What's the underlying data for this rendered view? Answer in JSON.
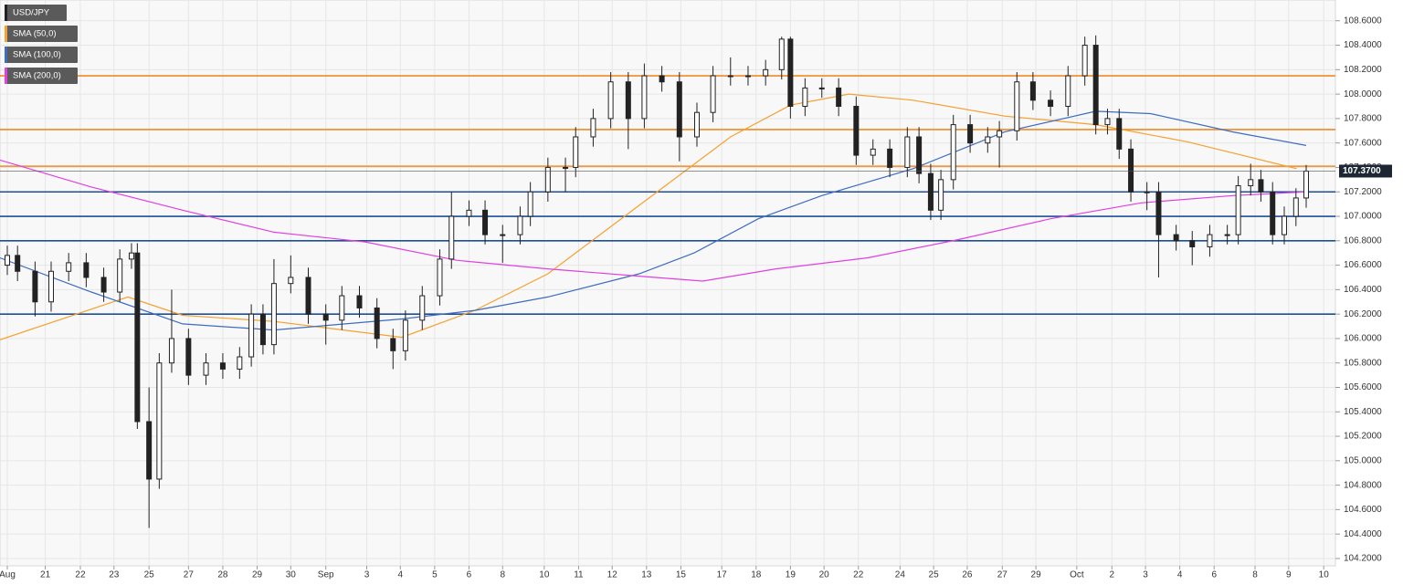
{
  "chart_data": {
    "type": "candlestick",
    "xlim": [
      0,
      91.4
    ],
    "ylim": [
      104.14,
      108.77
    ],
    "grid": true,
    "legend": "top-left",
    "yticks": [
      {
        "value": 104.2,
        "label": "104.2000"
      },
      {
        "value": 104.4,
        "label": "104.4000"
      },
      {
        "value": 104.6,
        "label": "104.6000"
      },
      {
        "value": 104.8,
        "label": "104.8000"
      },
      {
        "value": 105.0,
        "label": "105.0000"
      },
      {
        "value": 105.2,
        "label": "105.2000"
      },
      {
        "value": 105.4,
        "label": "105.4000"
      },
      {
        "value": 105.6,
        "label": "105.6000"
      },
      {
        "value": 105.8,
        "label": "105.8000"
      },
      {
        "value": 106.0,
        "label": "106.0000"
      },
      {
        "value": 106.2,
        "label": "106.2000"
      },
      {
        "value": 106.4,
        "label": "106.4000"
      },
      {
        "value": 106.6,
        "label": "106.6000"
      },
      {
        "value": 106.8,
        "label": "106.8000"
      },
      {
        "value": 107.0,
        "label": "107.0000"
      },
      {
        "value": 107.2,
        "label": "107.2000"
      },
      {
        "value": 107.4,
        "label": "107.4000"
      },
      {
        "value": 107.6,
        "label": "107.6000"
      },
      {
        "value": 107.8,
        "label": "107.8000"
      },
      {
        "value": 108.0,
        "label": "108.0000"
      },
      {
        "value": 108.2,
        "label": "108.2000"
      },
      {
        "value": 108.4,
        "label": "108.4000"
      },
      {
        "value": 108.6,
        "label": "108.6000"
      }
    ],
    "xticks": [
      {
        "value": 0.5,
        "label": "Aug"
      },
      {
        "value": 3.1,
        "label": "21"
      },
      {
        "value": 5.5,
        "label": "22"
      },
      {
        "value": 7.8,
        "label": "23"
      },
      {
        "value": 10.2,
        "label": "25"
      },
      {
        "value": 12.9,
        "label": "27"
      },
      {
        "value": 15.25,
        "label": "28"
      },
      {
        "value": 17.6,
        "label": "29"
      },
      {
        "value": 19.9,
        "label": "30"
      },
      {
        "value": 22.3,
        "label": "Sep"
      },
      {
        "value": 25.1,
        "label": "3"
      },
      {
        "value": 27.4,
        "label": "4"
      },
      {
        "value": 29.75,
        "label": "5"
      },
      {
        "value": 32.1,
        "label": "6"
      },
      {
        "value": 34.4,
        "label": "8"
      },
      {
        "value": 37.25,
        "label": "10"
      },
      {
        "value": 39.6,
        "label": "11"
      },
      {
        "value": 41.9,
        "label": "12"
      },
      {
        "value": 44.25,
        "label": "13"
      },
      {
        "value": 46.6,
        "label": "15"
      },
      {
        "value": 49.4,
        "label": "17"
      },
      {
        "value": 51.75,
        "label": "18"
      },
      {
        "value": 54.1,
        "label": "19"
      },
      {
        "value": 56.4,
        "label": "20"
      },
      {
        "value": 58.75,
        "label": "22"
      },
      {
        "value": 61.6,
        "label": "24"
      },
      {
        "value": 63.9,
        "label": "25"
      },
      {
        "value": 66.2,
        "label": "26"
      },
      {
        "value": 68.6,
        "label": "27"
      },
      {
        "value": 70.9,
        "label": "29"
      },
      {
        "value": 73.7,
        "label": "Oct"
      },
      {
        "value": 76.1,
        "label": "2"
      },
      {
        "value": 78.4,
        "label": "3"
      },
      {
        "value": 80.75,
        "label": "4"
      },
      {
        "value": 83.1,
        "label": "6"
      },
      {
        "value": 85.9,
        "label": "8"
      },
      {
        "value": 88.2,
        "label": "9"
      },
      {
        "value": 90.6,
        "label": "10"
      }
    ],
    "candles": {
      "name": "USD/JPY",
      "color": "#222222",
      "x": [
        0.5,
        1.2,
        2.4,
        3.5,
        4.7,
        5.9,
        7.1,
        8.2,
        9.0,
        9.4,
        10.2,
        10.9,
        11.75,
        12.9,
        14.1,
        15.25,
        16.4,
        17.2,
        18,
        18.75,
        19.9,
        21.1,
        22.3,
        23.4,
        24.6,
        25.8,
        26.9,
        27.75,
        28.9,
        30.1,
        30.9,
        32.1,
        33.2,
        34.4,
        35.6,
        36.3,
        37.5,
        38.7,
        39.4,
        40.6,
        41.8,
        43,
        44.1,
        45.3,
        46.5,
        47.7,
        48.8,
        50,
        51.2,
        52.4,
        53.5,
        54.1,
        55.1,
        56.25,
        57.4,
        58.6,
        59.75,
        60.9,
        62.1,
        62.9,
        63.7,
        64.4,
        65.25,
        66.4,
        67.6,
        68.4,
        69.6,
        70.7,
        71.9,
        73.1,
        74.25,
        75,
        75.8,
        76.6,
        77.4,
        78.5,
        79.3,
        80.5,
        81.6,
        82.8,
        84,
        84.75,
        85.6,
        86.3,
        87.1,
        87.9,
        88.7,
        89.4
      ],
      "open": [
        106.6,
        106.68,
        106.55,
        106.3,
        106.55,
        106.62,
        106.5,
        106.38,
        106.65,
        106.7,
        105.32,
        104.85,
        105.8,
        106.0,
        105.7,
        105.8,
        105.75,
        105.85,
        106.2,
        105.95,
        106.45,
        106.5,
        106.2,
        106.15,
        106.35,
        106.25,
        106.0,
        105.9,
        106.15,
        106.35,
        106.65,
        107.0,
        107.05,
        106.85,
        106.85,
        107.0,
        107.2,
        107.4,
        107.4,
        107.65,
        107.8,
        108.1,
        107.8,
        108.15,
        108.1,
        107.65,
        107.85,
        108.15,
        108.15,
        108.15,
        108.2,
        108.45,
        107.9,
        108.05,
        108.05,
        107.9,
        107.5,
        107.55,
        107.4,
        107.65,
        107.35,
        107.05,
        107.3,
        107.75,
        107.6,
        107.65,
        107.7,
        108.1,
        107.95,
        107.9,
        108.15,
        108.4,
        107.75,
        107.8,
        107.55,
        107.2,
        107.2,
        106.85,
        106.8,
        106.75,
        106.85,
        106.85,
        107.25,
        107.3,
        107.2,
        106.85,
        107.0,
        107.15
      ],
      "high": [
        106.76,
        106.76,
        106.63,
        106.63,
        106.7,
        106.7,
        106.58,
        106.73,
        106.78,
        106.78,
        105.6,
        105.88,
        106.4,
        106.08,
        105.88,
        105.88,
        105.93,
        106.28,
        106.28,
        106.65,
        106.68,
        106.58,
        106.28,
        106.43,
        106.43,
        106.33,
        106.08,
        106.23,
        106.43,
        106.73,
        107.2,
        107.13,
        107.13,
        106.93,
        107.08,
        107.28,
        107.48,
        107.48,
        107.73,
        107.88,
        108.18,
        108.18,
        108.25,
        108.23,
        108.18,
        107.93,
        108.23,
        108.3,
        108.23,
        108.28,
        108.47,
        108.47,
        108.13,
        108.13,
        108.13,
        107.98,
        107.63,
        107.63,
        107.73,
        107.73,
        107.43,
        107.38,
        107.83,
        107.83,
        107.73,
        107.78,
        108.18,
        108.18,
        108.03,
        108.23,
        108.47,
        108.48,
        107.88,
        107.88,
        107.63,
        107.28,
        107.28,
        106.93,
        106.88,
        106.93,
        106.93,
        107.33,
        107.43,
        107.38,
        107.28,
        107.08,
        107.23,
        107.42
      ],
      "low": [
        106.52,
        106.47,
        106.18,
        106.22,
        106.47,
        106.42,
        106.3,
        106.3,
        106.57,
        105.26,
        104.45,
        104.77,
        105.72,
        105.62,
        105.62,
        105.67,
        105.67,
        105.77,
        105.87,
        105.87,
        106.37,
        106.12,
        105.95,
        106.07,
        106.17,
        105.92,
        105.75,
        105.82,
        106.07,
        106.27,
        106.57,
        106.92,
        106.77,
        106.62,
        106.77,
        106.92,
        107.12,
        107.2,
        107.32,
        107.57,
        107.72,
        107.55,
        107.72,
        108.02,
        107.45,
        107.57,
        107.77,
        108.07,
        108.07,
        108.07,
        108.12,
        107.8,
        107.82,
        107.97,
        107.82,
        107.42,
        107.42,
        107.32,
        107.32,
        107.27,
        106.97,
        106.97,
        107.22,
        107.52,
        107.52,
        107.4,
        107.62,
        107.87,
        107.82,
        107.82,
        108.07,
        107.67,
        107.67,
        107.47,
        107.12,
        107.05,
        106.5,
        106.72,
        106.6,
        106.67,
        106.77,
        106.77,
        107.17,
        107.12,
        106.77,
        106.77,
        106.92,
        107.07
      ],
      "close": [
        106.68,
        106.55,
        106.3,
        106.55,
        106.62,
        106.5,
        106.38,
        106.65,
        106.7,
        105.32,
        104.85,
        105.8,
        106.0,
        105.7,
        105.8,
        105.75,
        105.85,
        106.2,
        105.95,
        106.45,
        106.5,
        106.2,
        106.15,
        106.35,
        106.25,
        106.0,
        105.9,
        106.15,
        106.35,
        106.65,
        107.0,
        107.05,
        106.85,
        106.85,
        107.0,
        107.2,
        107.4,
        107.4,
        107.65,
        107.8,
        108.1,
        107.8,
        108.15,
        108.1,
        107.65,
        107.85,
        108.15,
        108.15,
        108.15,
        108.2,
        108.45,
        107.9,
        108.05,
        108.05,
        107.9,
        107.5,
        107.55,
        107.4,
        107.65,
        107.35,
        107.05,
        107.3,
        107.75,
        107.6,
        107.65,
        107.7,
        108.1,
        107.95,
        107.9,
        108.15,
        108.4,
        107.75,
        107.8,
        107.55,
        107.2,
        107.2,
        106.85,
        106.8,
        106.75,
        106.85,
        106.85,
        107.25,
        107.3,
        107.2,
        106.85,
        107.0,
        107.15,
        107.37
      ]
    },
    "series": [
      {
        "name": "SMA (50,0)",
        "color": "#f5a030",
        "x": [
          0,
          8.75,
          12.5,
          18.75,
          27.5,
          32.5,
          37.5,
          43.75,
          50,
          54.1,
          58.1,
          62.5,
          68.75,
          75,
          81.25,
          88.75
        ],
        "values": [
          105.99,
          106.34,
          106.19,
          106.14,
          106.01,
          106.23,
          106.53,
          107.09,
          107.65,
          107.91,
          108.0,
          107.95,
          107.82,
          107.75,
          107.61,
          107.39
        ]
      },
      {
        "name": "SMA (100,0)",
        "color": "#3d6cc0",
        "x": [
          0,
          6.25,
          12.5,
          18.75,
          27.5,
          32.5,
          37.5,
          43.75,
          47.5,
          51.9,
          56.25,
          62.5,
          68.75,
          75,
          78.75,
          84.4,
          89.4
        ],
        "values": [
          106.66,
          106.38,
          106.12,
          106.07,
          106.16,
          106.23,
          106.34,
          106.53,
          106.7,
          106.98,
          107.17,
          107.39,
          107.69,
          107.86,
          107.84,
          107.69,
          107.58
        ]
      },
      {
        "name": "SMA (200,0)",
        "color": "#e040e0",
        "x": [
          0,
          6.25,
          12.5,
          18.75,
          25,
          31.25,
          37.5,
          43.75,
          48.1,
          53.1,
          59.4,
          65.6,
          71.9,
          78.1,
          84.4,
          89.4
        ],
        "values": [
          107.46,
          107.24,
          107.05,
          106.87,
          106.79,
          106.64,
          106.57,
          106.51,
          106.47,
          106.57,
          106.66,
          106.81,
          106.98,
          107.11,
          107.17,
          107.2
        ]
      }
    ],
    "levels": [
      {
        "value": 108.15,
        "color": "#f08a24"
      },
      {
        "value": 107.71,
        "color": "#f08a24"
      },
      {
        "value": 107.41,
        "color": "#f08a24"
      },
      {
        "value": 107.2,
        "color": "#1c4f9a"
      },
      {
        "value": 107.0,
        "color": "#1c4f9a"
      },
      {
        "value": 106.8,
        "color": "#1c4f9a"
      },
      {
        "value": 106.2,
        "color": "#1c4f9a"
      }
    ],
    "last_price": {
      "value": 107.37,
      "label": "107.3700"
    }
  }
}
